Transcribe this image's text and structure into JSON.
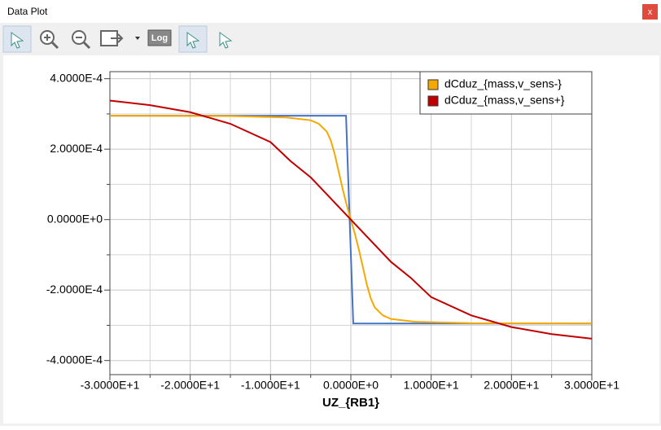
{
  "window": {
    "title": "Data Plot",
    "close_label": "x",
    "log_button": "Log"
  },
  "chart_data": {
    "type": "line",
    "x_label": "UZ_{RB1}",
    "xlim": [
      -30,
      30
    ],
    "ylim": [
      -0.00044,
      0.00042
    ],
    "xticks": [
      {
        "value": -30,
        "label": "-3.0000E+1"
      },
      {
        "value": -20,
        "label": "-2.0000E+1"
      },
      {
        "value": -10,
        "label": "-1.0000E+1"
      },
      {
        "value": 0,
        "label": "0.0000E+0"
      },
      {
        "value": 10,
        "label": "1.0000E+1"
      },
      {
        "value": 20,
        "label": "2.0000E+1"
      },
      {
        "value": 30,
        "label": "3.0000E+1"
      }
    ],
    "yticks": [
      {
        "value": 0.0004,
        "label": "4.0000E-4"
      },
      {
        "value": 0.0002,
        "label": "2.0000E-4"
      },
      {
        "value": 0,
        "label": "0.0000E+0"
      },
      {
        "value": -0.0002,
        "label": "-2.0000E-4"
      },
      {
        "value": -0.0004,
        "label": "-4.0000E-4"
      }
    ],
    "x_minor_ticks": [
      -25,
      -15,
      -5,
      5,
      15,
      25
    ],
    "y_minor_ticks": [
      0.0003,
      0.0001,
      -0.0001,
      -0.0003
    ],
    "grid": true,
    "legend": "top-right",
    "series": [
      {
        "color": "#4472c4",
        "x": [
          -30,
          -0.6,
          0.3,
          30
        ],
        "values": [
          0.000295,
          0.000295,
          -0.000295,
          -0.000295
        ]
      },
      {
        "name": "dCduz_{mass,v_sens-}",
        "color": "#f5a800",
        "x": [
          -30,
          -15,
          -8,
          -5,
          -4,
          -3,
          -2.5,
          -2,
          -1.5,
          -1,
          -0.5,
          0,
          0.5,
          1,
          1.5,
          2,
          2.5,
          3,
          4,
          5,
          8,
          15,
          30
        ],
        "values": [
          0.000295,
          0.000294,
          0.00029,
          0.000282,
          0.000272,
          0.00025,
          0.000225,
          0.000185,
          0.000135,
          8.5e-05,
          4e-05,
          0,
          -4e-05,
          -8.5e-05,
          -0.000135,
          -0.000185,
          -0.000225,
          -0.00025,
          -0.000272,
          -0.000282,
          -0.00029,
          -0.000294,
          -0.000295
        ]
      },
      {
        "name": "dCduz_{mass,v_sens+}",
        "color": "#c00000",
        "x": [
          -30,
          -25,
          -20,
          -15,
          -10,
          -7.5,
          -5,
          -2.5,
          0,
          2.5,
          5,
          7.5,
          10,
          15,
          20,
          25,
          30
        ],
        "values": [
          0.000338,
          0.000325,
          0.000305,
          0.000272,
          0.00022,
          0.000166,
          0.00012,
          6e-05,
          0,
          -6e-05,
          -0.00012,
          -0.000166,
          -0.00022,
          -0.000272,
          -0.000305,
          -0.000325,
          -0.000338
        ]
      }
    ]
  }
}
